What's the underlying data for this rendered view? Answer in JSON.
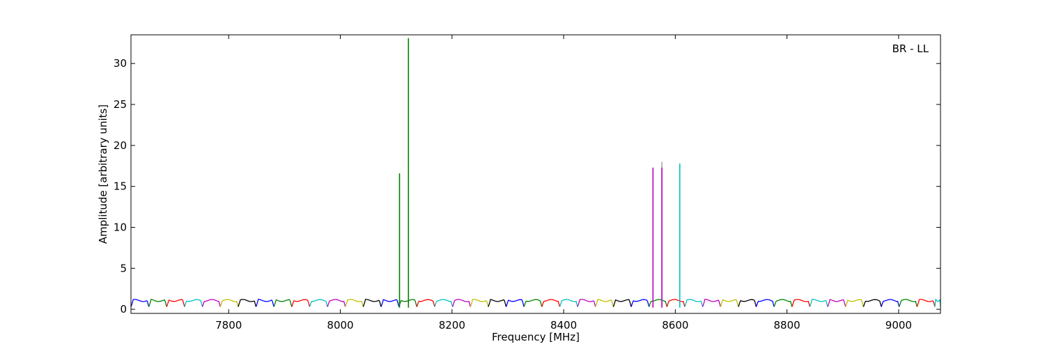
{
  "chart_data": {
    "type": "line",
    "title": "",
    "annotation": "BR - LL",
    "xlabel": "Frequency [MHz]",
    "ylabel": "Amplitude [arbitrary units]",
    "xlim": [
      7625,
      9075
    ],
    "ylim": [
      -0.5,
      33.5
    ],
    "xticks": [
      7800,
      8000,
      8200,
      8400,
      8600,
      8800,
      9000
    ],
    "yticks": [
      0,
      5,
      10,
      15,
      20,
      25,
      30
    ],
    "grid": false,
    "legend": "none",
    "baseline_band": {
      "start_mhz": 7625,
      "end_mhz": 9075,
      "subband_width_mhz": 32,
      "typical_level": 1.1,
      "min_level": 0.3
    },
    "color_cycle": [
      "#0000ff",
      "#008000",
      "#ff0000",
      "#00bfbf",
      "#bf00bf",
      "#bfbf00",
      "#000000"
    ],
    "spikes": [
      {
        "x": 8106,
        "y": 16.6,
        "color": "#008000"
      },
      {
        "x": 8122,
        "y": 33.1,
        "color": "#008000"
      },
      {
        "x": 8560,
        "y": 17.3,
        "color": "#bf00bf"
      },
      {
        "x": 8576,
        "y": 18.0,
        "color": "#aaaaaa"
      },
      {
        "x": 8576,
        "y": 17.3,
        "color": "#bf00bf"
      },
      {
        "x": 8608,
        "y": 17.8,
        "color": "#00bfbf"
      }
    ]
  }
}
